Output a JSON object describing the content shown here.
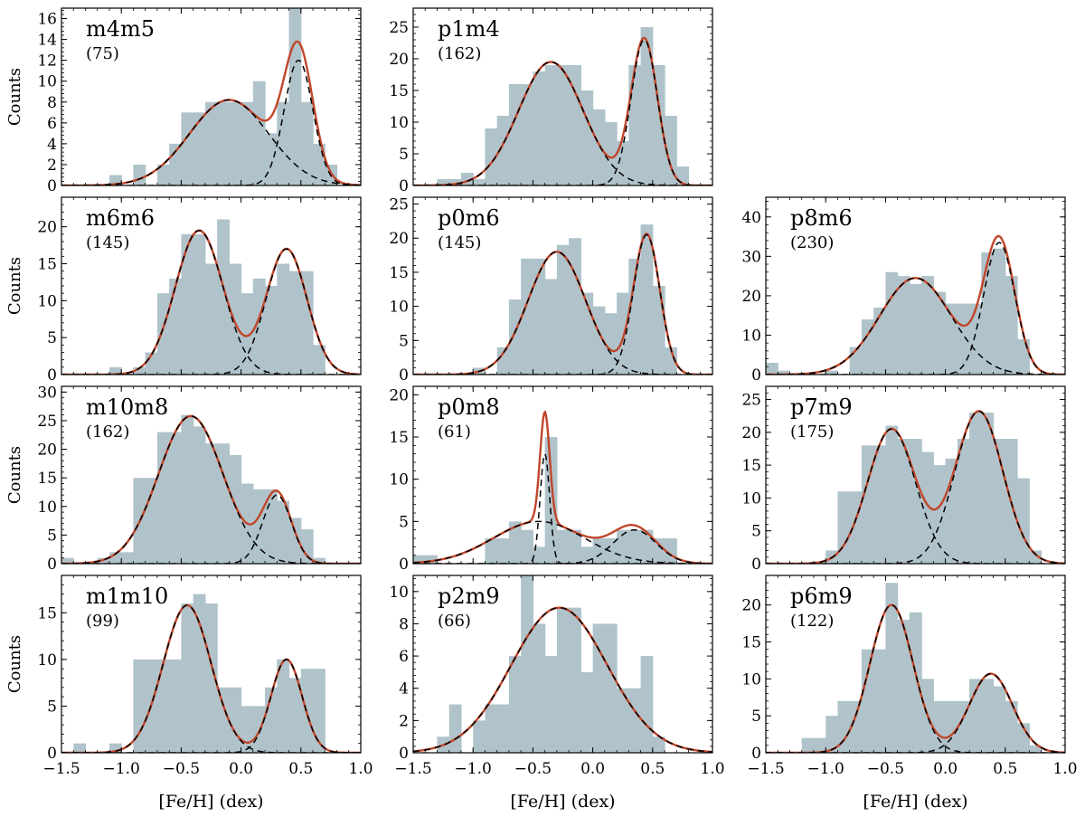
{
  "figure": {
    "xlabel": "[Fe/H] (dex)",
    "ylabel": "Counts",
    "xticks": [
      -1.5,
      -1.0,
      -0.5,
      0.0,
      0.5,
      1.0
    ],
    "xtick_labels": [
      "−1.5",
      "−1.0",
      "−0.5",
      "0.0",
      "0.5",
      "1.0"
    ],
    "bin_width": 0.1,
    "colors": {
      "histogram": "#b0c3cb",
      "total_fit": "#c0462a",
      "components": "#000000"
    }
  },
  "chart_data": [
    {
      "type": "bar",
      "name": "m4m5",
      "n_label": "(75)",
      "row": 0,
      "col": 0,
      "xlim": [
        -1.5,
        1.0
      ],
      "ylim": [
        0,
        17
      ],
      "yticks": [
        0,
        2,
        4,
        6,
        8,
        10,
        12,
        14,
        16
      ],
      "show_ylabel": true,
      "show_xticklabels": false,
      "bins": [
        [
          -1.1,
          1
        ],
        [
          -0.9,
          2
        ],
        [
          -0.7,
          2
        ],
        [
          -0.6,
          4
        ],
        [
          -0.5,
          7
        ],
        [
          -0.4,
          7
        ],
        [
          -0.3,
          8
        ],
        [
          -0.2,
          8
        ],
        [
          -0.1,
          8
        ],
        [
          0.0,
          8
        ],
        [
          0.1,
          10
        ],
        [
          0.2,
          5
        ],
        [
          0.3,
          8
        ],
        [
          0.4,
          17
        ],
        [
          0.5,
          8
        ],
        [
          0.6,
          4
        ],
        [
          0.7,
          2
        ]
      ],
      "components": [
        {
          "mu": -0.1,
          "sigma": 0.33,
          "amp": 8.2
        },
        {
          "mu": 0.48,
          "sigma": 0.12,
          "amp": 12.0
        }
      ]
    },
    {
      "type": "bar",
      "name": "p1m4",
      "n_label": "(162)",
      "row": 0,
      "col": 1,
      "xlim": [
        -1.5,
        1.0
      ],
      "ylim": [
        0,
        28
      ],
      "yticks": [
        0,
        5,
        10,
        15,
        20,
        25
      ],
      "show_ylabel": false,
      "show_xticklabels": false,
      "bins": [
        [
          -1.3,
          1
        ],
        [
          -1.2,
          1
        ],
        [
          -1.1,
          2
        ],
        [
          -1.0,
          1
        ],
        [
          -0.9,
          9
        ],
        [
          -0.8,
          11
        ],
        [
          -0.7,
          16
        ],
        [
          -0.6,
          16
        ],
        [
          -0.5,
          18
        ],
        [
          -0.4,
          19
        ],
        [
          -0.3,
          19
        ],
        [
          -0.2,
          19
        ],
        [
          -0.1,
          15
        ],
        [
          0.0,
          12
        ],
        [
          0.1,
          10
        ],
        [
          0.2,
          7
        ],
        [
          0.3,
          19
        ],
        [
          0.4,
          25
        ],
        [
          0.5,
          19
        ],
        [
          0.6,
          11
        ],
        [
          0.7,
          3
        ]
      ],
      "components": [
        {
          "mu": -0.35,
          "sigma": 0.27,
          "amp": 19.5
        },
        {
          "mu": 0.43,
          "sigma": 0.11,
          "amp": 23.0
        }
      ]
    },
    {
      "type": "bar",
      "name": "m6m6",
      "n_label": "(145)",
      "row": 1,
      "col": 0,
      "xlim": [
        -1.5,
        1.0
      ],
      "ylim": [
        0,
        24
      ],
      "yticks": [
        0,
        5,
        10,
        15,
        20
      ],
      "show_ylabel": true,
      "show_xticklabels": false,
      "bins": [
        [
          -1.1,
          1
        ],
        [
          -0.9,
          1
        ],
        [
          -0.8,
          3
        ],
        [
          -0.7,
          11
        ],
        [
          -0.6,
          13
        ],
        [
          -0.5,
          19
        ],
        [
          -0.4,
          19
        ],
        [
          -0.3,
          15
        ],
        [
          -0.2,
          21
        ],
        [
          -0.1,
          15
        ],
        [
          0.0,
          11
        ],
        [
          0.1,
          13
        ],
        [
          0.2,
          12
        ],
        [
          0.3,
          15
        ],
        [
          0.4,
          14
        ],
        [
          0.5,
          14
        ],
        [
          0.6,
          4
        ]
      ],
      "components": [
        {
          "mu": -0.35,
          "sigma": 0.2,
          "amp": 19.5
        },
        {
          "mu": 0.38,
          "sigma": 0.17,
          "amp": 17.0
        }
      ]
    },
    {
      "type": "bar",
      "name": "p0m6",
      "n_label": "(145)",
      "row": 1,
      "col": 1,
      "xlim": [
        -1.5,
        1.0
      ],
      "ylim": [
        0,
        26
      ],
      "yticks": [
        0,
        5,
        10,
        15,
        20,
        25
      ],
      "show_ylabel": false,
      "show_xticklabels": false,
      "bins": [
        [
          -1.0,
          1
        ],
        [
          -0.8,
          4
        ],
        [
          -0.7,
          11
        ],
        [
          -0.6,
          17
        ],
        [
          -0.5,
          17
        ],
        [
          -0.4,
          14
        ],
        [
          -0.3,
          19
        ],
        [
          -0.2,
          20
        ],
        [
          -0.1,
          12
        ],
        [
          0.0,
          10
        ],
        [
          0.1,
          9
        ],
        [
          0.2,
          12
        ],
        [
          0.3,
          17
        ],
        [
          0.4,
          22
        ],
        [
          0.5,
          13
        ],
        [
          0.6,
          4
        ]
      ],
      "components": [
        {
          "mu": -0.3,
          "sigma": 0.24,
          "amp": 18.0
        },
        {
          "mu": 0.45,
          "sigma": 0.11,
          "amp": 20.5
        }
      ]
    },
    {
      "type": "bar",
      "name": "p8m6",
      "n_label": "(230)",
      "row": 1,
      "col": 2,
      "xlim": [
        -1.5,
        1.0
      ],
      "ylim": [
        0,
        45
      ],
      "yticks": [
        0,
        10,
        20,
        30,
        40
      ],
      "show_ylabel": false,
      "show_xticklabels": false,
      "bins": [
        [
          -1.5,
          3
        ],
        [
          -1.4,
          1
        ],
        [
          -1.0,
          1
        ],
        [
          -0.8,
          7
        ],
        [
          -0.7,
          14
        ],
        [
          -0.6,
          17
        ],
        [
          -0.5,
          26
        ],
        [
          -0.4,
          25
        ],
        [
          -0.3,
          23
        ],
        [
          -0.2,
          25
        ],
        [
          -0.1,
          21
        ],
        [
          0.0,
          18
        ],
        [
          0.1,
          18
        ],
        [
          0.2,
          18
        ],
        [
          0.3,
          31
        ],
        [
          0.4,
          32
        ],
        [
          0.5,
          25
        ],
        [
          0.6,
          9
        ]
      ],
      "components": [
        {
          "mu": -0.25,
          "sigma": 0.3,
          "amp": 24.5
        },
        {
          "mu": 0.45,
          "sigma": 0.13,
          "amp": 33.5
        }
      ]
    },
    {
      "type": "bar",
      "name": "m10m8",
      "n_label": "(162)",
      "row": 2,
      "col": 0,
      "xlim": [
        -1.5,
        1.0
      ],
      "ylim": [
        0,
        31
      ],
      "yticks": [
        0,
        5,
        10,
        15,
        20,
        25,
        30
      ],
      "show_ylabel": true,
      "show_xticklabels": false,
      "bins": [
        [
          -1.5,
          1
        ],
        [
          -1.2,
          1
        ],
        [
          -1.1,
          2
        ],
        [
          -1.0,
          2
        ],
        [
          -0.9,
          15
        ],
        [
          -0.8,
          15
        ],
        [
          -0.7,
          23
        ],
        [
          -0.6,
          23
        ],
        [
          -0.5,
          26
        ],
        [
          -0.4,
          24
        ],
        [
          -0.3,
          21
        ],
        [
          -0.2,
          21
        ],
        [
          -0.1,
          19
        ],
        [
          0.0,
          14
        ],
        [
          0.1,
          13
        ],
        [
          0.2,
          13
        ],
        [
          0.3,
          11
        ],
        [
          0.4,
          8
        ],
        [
          0.5,
          6
        ],
        [
          0.6,
          1
        ]
      ],
      "components": [
        {
          "mu": -0.42,
          "sigma": 0.27,
          "amp": 25.8
        },
        {
          "mu": 0.3,
          "sigma": 0.12,
          "amp": 12.0
        }
      ]
    },
    {
      "type": "bar",
      "name": "p0m8",
      "n_label": "(61)",
      "row": 2,
      "col": 1,
      "xlim": [
        -1.5,
        1.0
      ],
      "ylim": [
        0,
        21
      ],
      "yticks": [
        0,
        5,
        10,
        15,
        20
      ],
      "show_ylabel": false,
      "show_xticklabels": false,
      "bins": [
        [
          -1.5,
          1
        ],
        [
          -1.4,
          1
        ],
        [
          -0.9,
          3
        ],
        [
          -0.8,
          3
        ],
        [
          -0.7,
          5
        ],
        [
          -0.6,
          4
        ],
        [
          -0.5,
          2
        ],
        [
          -0.4,
          15
        ],
        [
          -0.3,
          4
        ],
        [
          -0.2,
          4
        ],
        [
          -0.1,
          2
        ],
        [
          0.0,
          3
        ],
        [
          0.1,
          3
        ],
        [
          0.2,
          4
        ],
        [
          0.3,
          4
        ],
        [
          0.4,
          4
        ],
        [
          0.5,
          3
        ],
        [
          0.6,
          3
        ]
      ],
      "components": [
        {
          "mu": -0.45,
          "sigma": 0.38,
          "amp": 5.0
        },
        {
          "mu": -0.4,
          "sigma": 0.04,
          "amp": 13.0
        },
        {
          "mu": 0.35,
          "sigma": 0.18,
          "amp": 4.0
        }
      ]
    },
    {
      "type": "bar",
      "name": "p7m9",
      "n_label": "(175)",
      "row": 2,
      "col": 2,
      "xlim": [
        -1.5,
        1.0
      ],
      "ylim": [
        0,
        27
      ],
      "yticks": [
        0,
        5,
        10,
        15,
        20,
        25
      ],
      "show_ylabel": false,
      "show_xticklabels": false,
      "bins": [
        [
          -1.0,
          2
        ],
        [
          -0.9,
          11
        ],
        [
          -0.8,
          11
        ],
        [
          -0.7,
          18
        ],
        [
          -0.6,
          18
        ],
        [
          -0.5,
          21
        ],
        [
          -0.4,
          19
        ],
        [
          -0.3,
          19
        ],
        [
          -0.2,
          17
        ],
        [
          -0.1,
          15
        ],
        [
          0.0,
          16
        ],
        [
          0.1,
          19
        ],
        [
          0.2,
          23
        ],
        [
          0.3,
          23
        ],
        [
          0.4,
          19
        ],
        [
          0.5,
          19
        ],
        [
          0.6,
          13
        ],
        [
          0.7,
          2
        ]
      ],
      "components": [
        {
          "mu": -0.45,
          "sigma": 0.2,
          "amp": 20.5
        },
        {
          "mu": 0.28,
          "sigma": 0.2,
          "amp": 23.2
        }
      ]
    },
    {
      "type": "bar",
      "name": "m1m10",
      "n_label": "(99)",
      "row": 3,
      "col": 0,
      "xlim": [
        -1.5,
        1.0
      ],
      "ylim": [
        0,
        19
      ],
      "yticks": [
        0,
        5,
        10,
        15
      ],
      "show_ylabel": true,
      "show_xticklabels": true,
      "bins": [
        [
          -1.4,
          1
        ],
        [
          -1.1,
          1
        ],
        [
          -0.9,
          10
        ],
        [
          -0.8,
          10
        ],
        [
          -0.7,
          10
        ],
        [
          -0.6,
          10
        ],
        [
          -0.5,
          16
        ],
        [
          -0.4,
          17
        ],
        [
          -0.3,
          16
        ],
        [
          -0.2,
          7
        ],
        [
          -0.1,
          7
        ],
        [
          0.0,
          5
        ],
        [
          0.1,
          5
        ],
        [
          0.2,
          7
        ],
        [
          0.3,
          10
        ],
        [
          0.4,
          8
        ],
        [
          0.5,
          9
        ],
        [
          0.6,
          9
        ]
      ],
      "components": [
        {
          "mu": -0.45,
          "sigma": 0.2,
          "amp": 15.8
        },
        {
          "mu": 0.38,
          "sigma": 0.13,
          "amp": 10.0
        }
      ]
    },
    {
      "type": "bar",
      "name": "p2m9",
      "n_label": "(66)",
      "row": 3,
      "col": 1,
      "xlim": [
        -1.5,
        1.0
      ],
      "ylim": [
        0,
        11
      ],
      "yticks": [
        0,
        2,
        4,
        6,
        8,
        10
      ],
      "show_ylabel": false,
      "show_xticklabels": true,
      "bins": [
        [
          -1.3,
          1
        ],
        [
          -1.2,
          3
        ],
        [
          -1.0,
          2
        ],
        [
          -0.9,
          3
        ],
        [
          -0.8,
          3
        ],
        [
          -0.7,
          6
        ],
        [
          -0.6,
          11
        ],
        [
          -0.5,
          8
        ],
        [
          -0.4,
          6
        ],
        [
          -0.3,
          9
        ],
        [
          -0.2,
          9
        ],
        [
          -0.1,
          5
        ],
        [
          0.0,
          8
        ],
        [
          0.1,
          8
        ],
        [
          0.2,
          4
        ],
        [
          0.3,
          4
        ],
        [
          0.4,
          6
        ],
        [
          0.5,
          1
        ]
      ],
      "components": [
        {
          "mu": -0.28,
          "sigma": 0.4,
          "amp": 9.0
        }
      ]
    },
    {
      "type": "bar",
      "name": "p6m9",
      "n_label": "(122)",
      "row": 3,
      "col": 2,
      "xlim": [
        -1.5,
        1.0
      ],
      "ylim": [
        0,
        24
      ],
      "yticks": [
        0,
        5,
        10,
        15,
        20
      ],
      "show_ylabel": false,
      "show_xticklabels": true,
      "bins": [
        [
          -1.2,
          2
        ],
        [
          -1.1,
          2
        ],
        [
          -1.0,
          5
        ],
        [
          -0.9,
          7
        ],
        [
          -0.8,
          7
        ],
        [
          -0.7,
          14
        ],
        [
          -0.6,
          14
        ],
        [
          -0.5,
          23
        ],
        [
          -0.4,
          18
        ],
        [
          -0.3,
          19
        ],
        [
          -0.2,
          10
        ],
        [
          -0.1,
          7
        ],
        [
          0.0,
          7
        ],
        [
          0.1,
          7
        ],
        [
          0.2,
          10
        ],
        [
          0.3,
          10
        ],
        [
          0.4,
          9
        ],
        [
          0.5,
          7
        ],
        [
          0.6,
          4
        ],
        [
          0.7,
          1
        ]
      ],
      "components": [
        {
          "mu": -0.45,
          "sigma": 0.18,
          "amp": 20.0
        },
        {
          "mu": 0.38,
          "sigma": 0.18,
          "amp": 10.7
        }
      ]
    }
  ]
}
